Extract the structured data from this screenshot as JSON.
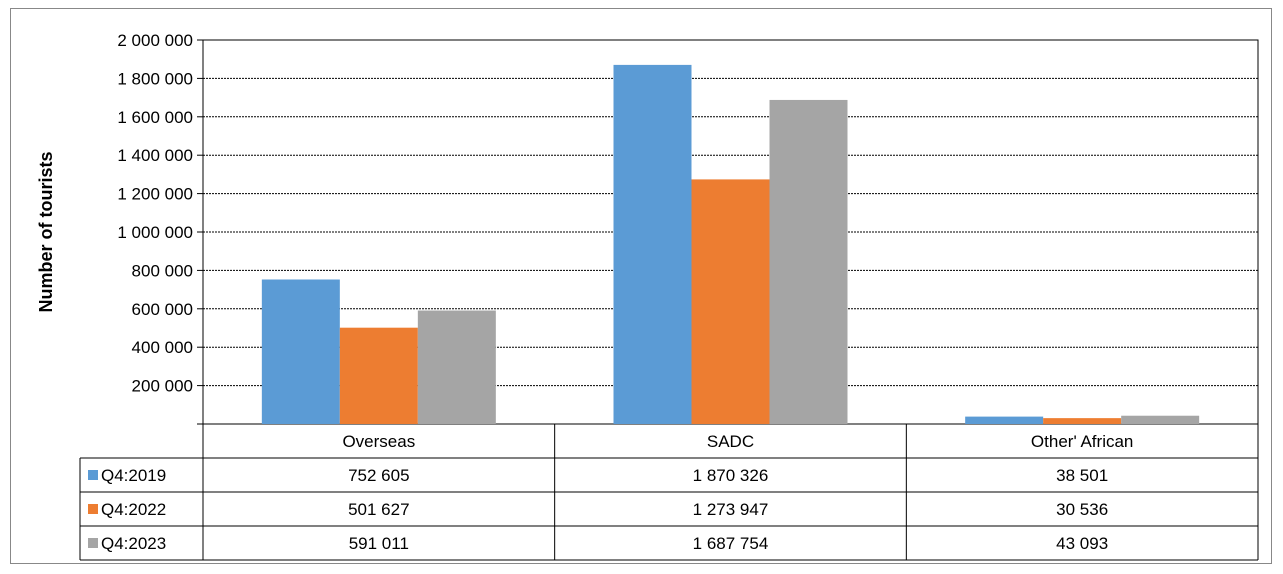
{
  "chart_data": {
    "type": "bar",
    "ylabel": "Number of tourists",
    "ylim": [
      0,
      2000000
    ],
    "yticks": [
      0,
      200000,
      400000,
      600000,
      800000,
      1000000,
      1200000,
      1400000,
      1600000,
      1800000,
      2000000
    ],
    "ytick_labels": [
      "",
      "200 000",
      "400 000",
      "600 000",
      "800 000",
      "1 000 000",
      "1 200 000",
      "1 400 000",
      "1 600 000",
      "1 800 000",
      "2 000 000"
    ],
    "grid": "horizontal dashed",
    "legend": "data table below chart",
    "categories": [
      "Overseas",
      "SADC",
      "Other' African"
    ],
    "series": [
      {
        "name": "Q4:2019",
        "color": "#5B9BD5",
        "values": [
          752605,
          1870326,
          38501
        ],
        "labels": [
          "752 605",
          "1 870 326",
          "38 501"
        ]
      },
      {
        "name": "Q4:2022",
        "color": "#ED7D31",
        "values": [
          501627,
          1273947,
          30536
        ],
        "labels": [
          "501 627",
          "1 273 947",
          "30 536"
        ]
      },
      {
        "name": "Q4:2023",
        "color": "#A5A5A5",
        "values": [
          591011,
          1687754,
          43093
        ],
        "labels": [
          "591 011",
          "1 687 754",
          "43 093"
        ]
      }
    ]
  }
}
